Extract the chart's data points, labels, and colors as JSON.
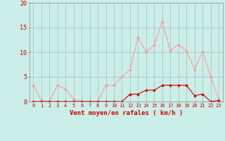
{
  "x": [
    0,
    1,
    2,
    3,
    4,
    5,
    6,
    7,
    8,
    9,
    10,
    11,
    12,
    13,
    14,
    15,
    16,
    17,
    18,
    19,
    20,
    21,
    22,
    23
  ],
  "y_rafales": [
    3.3,
    0.2,
    0.0,
    3.3,
    2.5,
    0.5,
    0.0,
    0.0,
    0.0,
    3.3,
    3.3,
    5.0,
    6.5,
    13.0,
    10.0,
    11.5,
    16.2,
    10.3,
    11.5,
    10.3,
    6.5,
    10.2,
    5.0,
    0.5
  ],
  "y_moyen": [
    0.0,
    0.0,
    0.0,
    0.0,
    0.0,
    0.0,
    0.0,
    0.0,
    0.0,
    0.0,
    0.0,
    0.0,
    1.5,
    1.5,
    2.3,
    2.3,
    3.3,
    3.3,
    3.3,
    3.3,
    1.2,
    1.5,
    0.0,
    0.2
  ],
  "bg_color": "#cceee8",
  "grid_color": "#aacccc",
  "line_color_rafales": "#ff9999",
  "line_color_moyen": "#cc0000",
  "xlabel": "Vent moyen/en rafales ( km/h )",
  "ylim": [
    0,
    20
  ],
  "yticks": [
    0,
    5,
    10,
    15,
    20
  ],
  "xticks": [
    0,
    1,
    2,
    3,
    4,
    5,
    6,
    7,
    8,
    9,
    10,
    11,
    12,
    13,
    14,
    15,
    16,
    17,
    18,
    19,
    20,
    21,
    22,
    23
  ],
  "tick_color": "#cc0000",
  "axis_color": "#999999"
}
